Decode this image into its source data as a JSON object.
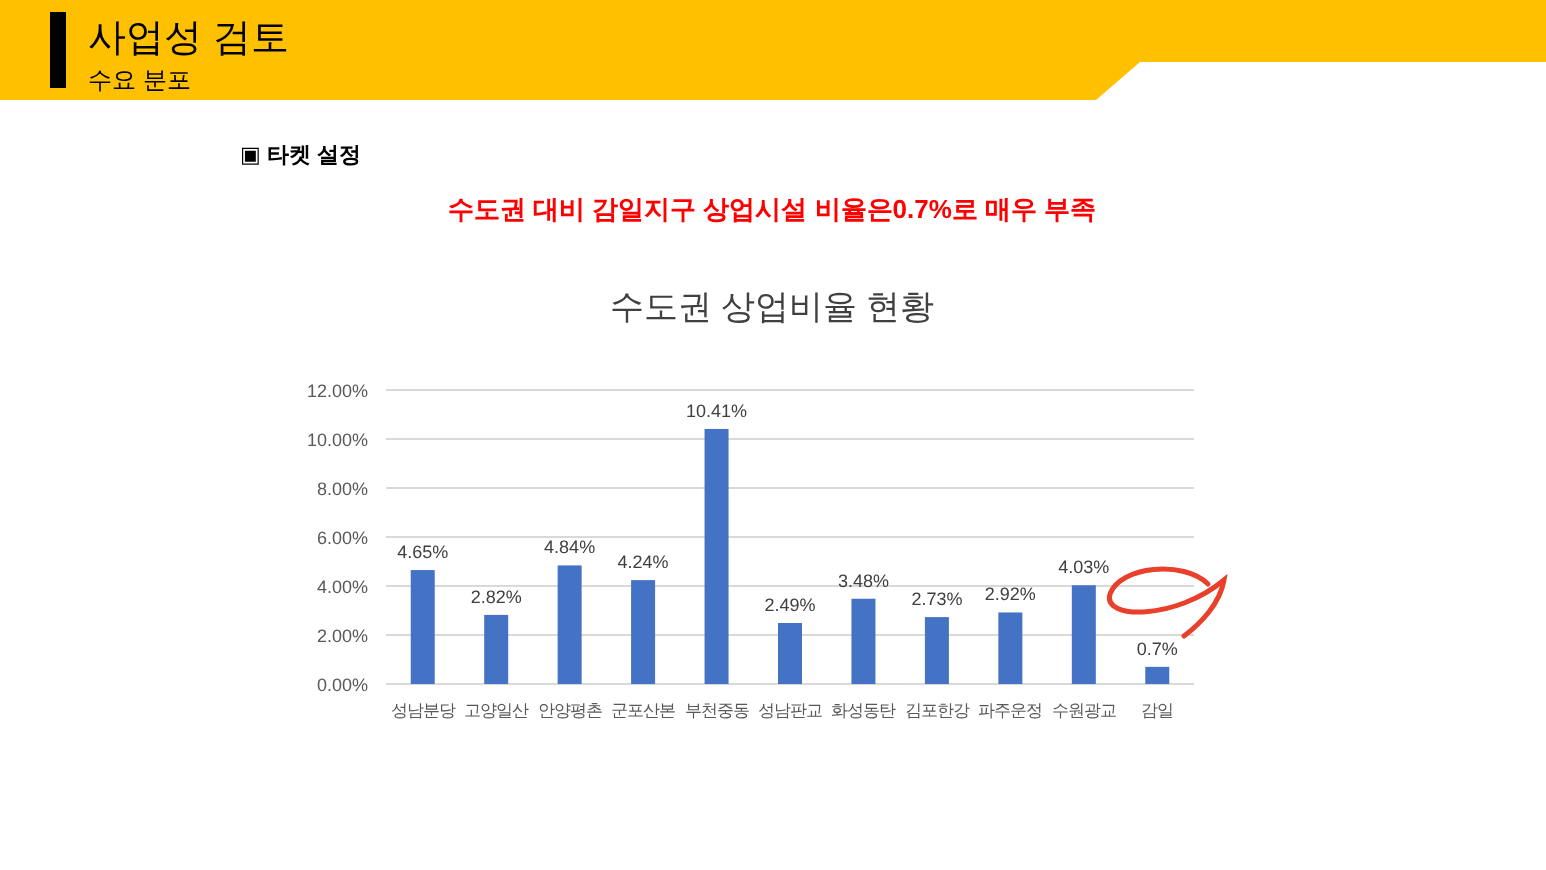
{
  "chart_data": {
    "type": "bar",
    "title": "수도권 상업비율 현황",
    "annotations": [
      "사업성 검토",
      "수요 분포",
      "▣ 타켓 설정",
      "수도권 대비 감일지구 상업시설 비율은0.7%로 매우 부족"
    ],
    "categories": [
      "성남분당",
      "고양일산",
      "안양평촌",
      "군포산본",
      "부천중동",
      "성남판교",
      "화성동탄",
      "김포한강",
      "파주운정",
      "수원광교",
      "감일"
    ],
    "values": [
      4.65,
      2.82,
      4.84,
      4.24,
      10.41,
      2.49,
      3.48,
      2.73,
      2.92,
      4.03,
      0.7
    ],
    "value_labels": [
      "4.65%",
      "2.82%",
      "4.84%",
      "4.24%",
      "10.41%",
      "2.49%",
      "3.48%",
      "2.73%",
      "2.92%",
      "4.03%",
      "0.7%"
    ],
    "color": "#4472c4",
    "ylim": [
      0,
      12
    ],
    "yticks": [
      {
        "value": 0,
        "label": "0.00%"
      },
      {
        "value": 2,
        "label": "2.00%"
      },
      {
        "value": 4,
        "label": "4.00%"
      },
      {
        "value": 6,
        "label": "6.00%"
      },
      {
        "value": 8,
        "label": "8.00%"
      },
      {
        "value": 10,
        "label": "10.00%"
      },
      {
        "value": 12,
        "label": "12.00%"
      }
    ],
    "grid": "y"
  }
}
